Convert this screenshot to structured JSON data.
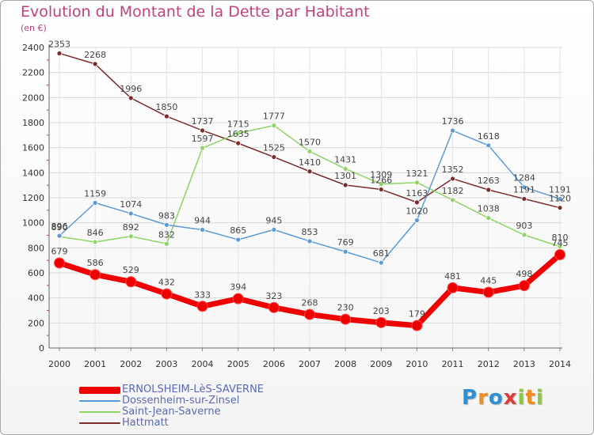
{
  "title": "Evolution du Montant de la Dette par Habitant",
  "subtitle": "(en €)",
  "logo": {
    "text": "Proxiti"
  },
  "chart_data": {
    "type": "line",
    "categories": [
      "2000",
      "2001",
      "2002",
      "2003",
      "2004",
      "2005",
      "2006",
      "2007",
      "2008",
      "2009",
      "2010",
      "2011",
      "2012",
      "2013",
      "2014"
    ],
    "yticks": [
      0,
      200,
      400,
      600,
      800,
      1000,
      1200,
      1400,
      1600,
      1800,
      2000,
      2200,
      2400
    ],
    "ylim": [
      0,
      2400
    ],
    "grid": true,
    "legend_position": "bottom-left",
    "series": [
      {
        "name": "ERNOLSHEIM-LèS-SAVERNE",
        "color": "#ee0000",
        "values": [
          679,
          586,
          529,
          432,
          333,
          394,
          323,
          268,
          230,
          203,
          179,
          481,
          445,
          498,
          745
        ]
      },
      {
        "name": "Dossenheim-sur-Zinsel",
        "color": "#5b9bd5",
        "values": [
          896,
          1159,
          1074,
          983,
          944,
          865,
          945,
          853,
          769,
          681,
          1020,
          1736,
          1618,
          1284,
          1191
        ]
      },
      {
        "name": "Saint-Jean-Saverne",
        "color": "#8fd464",
        "values": [
          890,
          846,
          892,
          832,
          1597,
          1715,
          1777,
          1570,
          1431,
          1309,
          1321,
          1182,
          1038,
          903,
          810
        ]
      },
      {
        "name": "Hattmatt",
        "color": "#7a2b2b",
        "values": [
          2353,
          2268,
          1996,
          1850,
          1737,
          1635,
          1525,
          1410,
          1301,
          1266,
          1163,
          1352,
          1263,
          1191,
          1120
        ]
      }
    ]
  }
}
